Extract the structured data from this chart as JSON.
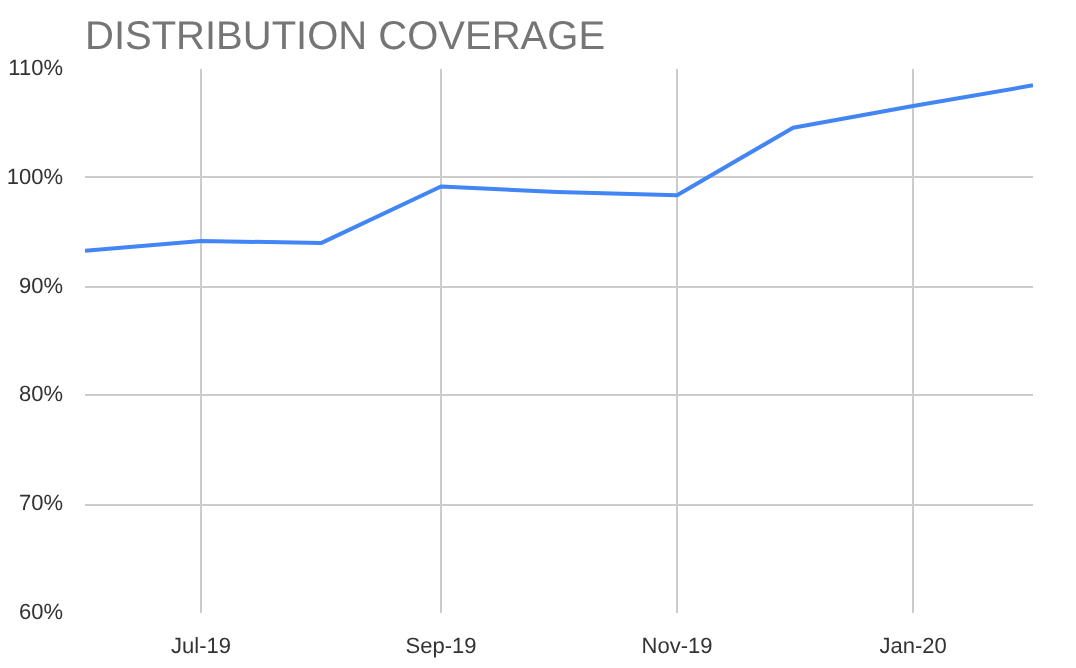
{
  "chart_data": {
    "type": "line",
    "title": "DISTRIBUTION COVERAGE",
    "x": [
      "2019-06",
      "2019-07",
      "2019-08",
      "2019-09",
      "2019-10",
      "2019-11",
      "2019-12",
      "2020-01",
      "2020-02"
    ],
    "series": [
      {
        "color": "#4285f4",
        "values": [
          93.3,
          94.2,
          94.0,
          99.2,
          98.7,
          98.4,
          104.6,
          106.6,
          108.5
        ]
      }
    ],
    "xlim": [
      "2019-06",
      "2020-02"
    ],
    "xticks": [
      {
        "value": "2019-07",
        "label": "Jul-19"
      },
      {
        "value": "2019-09",
        "label": "Sep-19"
      },
      {
        "value": "2019-11",
        "label": "Nov-19"
      },
      {
        "value": "2020-01",
        "label": "Jan-20"
      }
    ],
    "ylim": [
      60,
      110
    ],
    "yticks": [
      {
        "value": 60,
        "label": "60%"
      },
      {
        "value": 70,
        "label": "70%"
      },
      {
        "value": 80,
        "label": "80%"
      },
      {
        "value": 90,
        "label": "90%"
      },
      {
        "value": 100,
        "label": "100%"
      },
      {
        "value": 110,
        "label": "110%"
      }
    ],
    "grid": true,
    "line_style": "solid",
    "marker": "none"
  }
}
